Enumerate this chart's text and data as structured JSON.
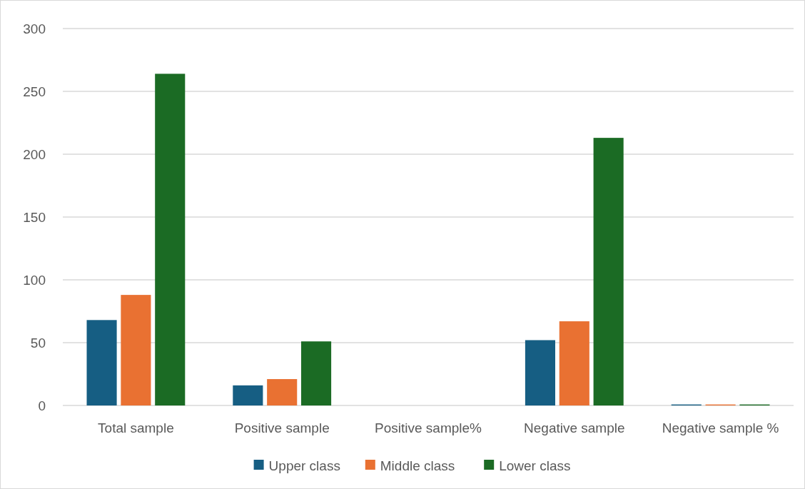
{
  "chart_data": {
    "type": "bar",
    "categories": [
      "Total sample",
      "Positive sample",
      "Positive sample%",
      "Negative sample",
      "Negative sample %"
    ],
    "series": [
      {
        "name": "Upper class",
        "color": "#165e83",
        "values": [
          68,
          16,
          null,
          52,
          0.8
        ]
      },
      {
        "name": "Middle class",
        "color": "#e97132",
        "values": [
          88,
          21,
          null,
          67,
          0.8
        ]
      },
      {
        "name": "Lower class",
        "color": "#1b6b24",
        "values": [
          264,
          51,
          null,
          213,
          0.8
        ]
      }
    ],
    "ylim": [
      0,
      300
    ],
    "yticks": [
      0,
      50,
      100,
      150,
      200,
      250,
      300
    ],
    "grid": "y",
    "legend": "bottom"
  }
}
